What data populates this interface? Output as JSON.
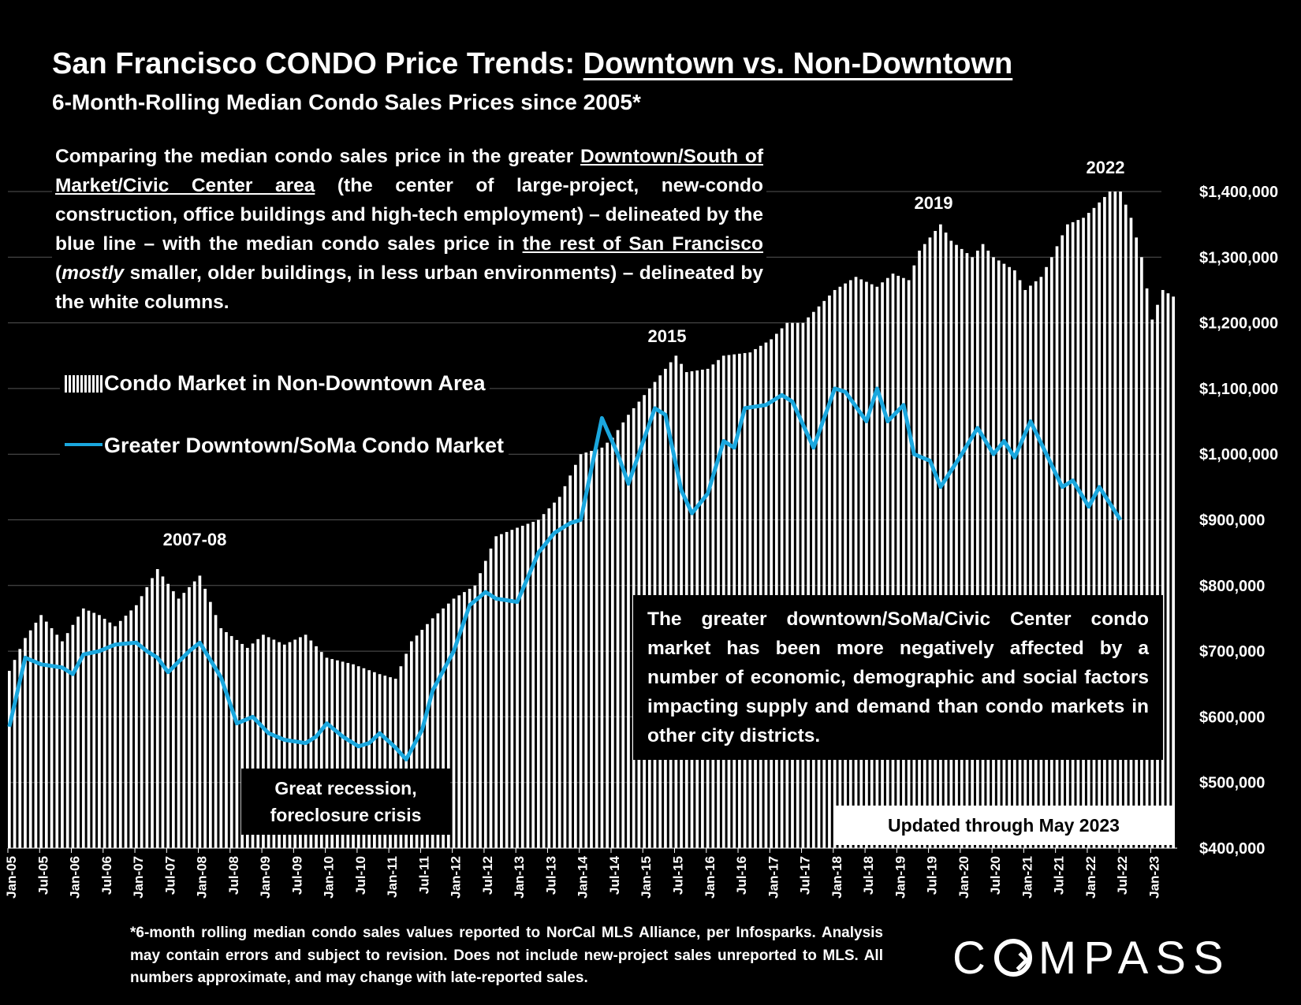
{
  "title": {
    "prefix": "San Francisco CONDO Price Trends: ",
    "underlined": "Downtown vs. Non-Downtown"
  },
  "subtitle": "6-Month-Rolling Median Condo Sales Prices since 2005*",
  "description": {
    "p1": "Comparing the median condo sales price in the greater ",
    "u1": "Downtown/South of Market/Civic Center area",
    "p2": " (the center of large-project, new-condo construction, office buildings and high-tech employment) – delineated by the blue line – with the median condo sales price in ",
    "u2": "the rest of San Francisco",
    "p3": " (",
    "i1": "mostly",
    "p4": " smaller, older buildings, in less urban environments) – delineated by the white columns."
  },
  "legend": {
    "bars": "Condo Market in Non-Downtown Area",
    "line": "Greater Downtown/SoMa Condo Market"
  },
  "annotations": {
    "y2007": "2007-08",
    "y2015": "2015",
    "y2019": "2019",
    "y2022": "2022",
    "box": "The greater downtown/SoMa/Civic Center condo market has been more negatively affected by a number of economic, demographic and social factors impacting supply and demand than condo markets in other city districts.",
    "recession_l1": "Great recession,",
    "recession_l2": "foreclosure crisis",
    "updated": "Updated through May 2023"
  },
  "footnote": "*6-month rolling median condo sales values reported to NorCal MLS Alliance, per Infosparks. Analysis may contain errors and subject to revision. Does not include new-project sales unreported to MLS. All numbers approximate, and may change with late-reported sales.",
  "logo": {
    "c": "C",
    "rest": "MPASS"
  },
  "colors": {
    "line": "#1aa7de",
    "bars": "#ffffff",
    "background": "#000000"
  },
  "chart_data": {
    "type": "bar",
    "ylim": [
      400000,
      1400000
    ],
    "y_ticks": [
      "$400,000",
      "$500,000",
      "$600,000",
      "$700,000",
      "$800,000",
      "$900,000",
      "$1,000,000",
      "$1,100,000",
      "$1,200,000",
      "$1,300,000",
      "$1,400,000"
    ],
    "y_tick_values": [
      400000,
      500000,
      600000,
      700000,
      800000,
      900000,
      1000000,
      1100000,
      1200000,
      1300000,
      1400000
    ],
    "x_ticks": [
      "Jan-05",
      "Jul-05",
      "Jan-06",
      "Jul-06",
      "Jan-07",
      "Jul-07",
      "Jan-08",
      "Jul-08",
      "Jan-09",
      "Jul-09",
      "Jan-10",
      "Jul-10",
      "Jan-11",
      "Jul-11",
      "Jan-12",
      "Jul-12",
      "Jan-13",
      "Jul-13",
      "Jan-14",
      "Jul-14",
      "Jan-15",
      "Jul-15",
      "Jan-16",
      "Jul-16",
      "Jan-17",
      "Jul-17",
      "Jan-18",
      "Jul-18",
      "Jan-19",
      "Jul-19",
      "Jan-20",
      "Jul-20",
      "Jan-21",
      "Jul-21",
      "Jan-22",
      "Jul-22",
      "Jan-23"
    ],
    "start_month": "Jan-05",
    "months": 221,
    "series": [
      {
        "name": "Condo Market in Non-Downtown Area",
        "kind": "bars",
        "anchors": [
          [
            0,
            670000
          ],
          [
            3,
            720000
          ],
          [
            6,
            755000
          ],
          [
            10,
            715000
          ],
          [
            14,
            765000
          ],
          [
            17,
            755000
          ],
          [
            20,
            738000
          ],
          [
            24,
            770000
          ],
          [
            28,
            825000
          ],
          [
            32,
            780000
          ],
          [
            36,
            815000
          ],
          [
            40,
            735000
          ],
          [
            45,
            705000
          ],
          [
            48,
            725000
          ],
          [
            52,
            710000
          ],
          [
            56,
            725000
          ],
          [
            60,
            690000
          ],
          [
            65,
            680000
          ],
          [
            70,
            665000
          ],
          [
            73,
            658000
          ],
          [
            76,
            715000
          ],
          [
            80,
            750000
          ],
          [
            84,
            780000
          ],
          [
            88,
            800000
          ],
          [
            92,
            875000
          ],
          [
            96,
            888000
          ],
          [
            100,
            900000
          ],
          [
            104,
            935000
          ],
          [
            108,
            1000000
          ],
          [
            112,
            1010000
          ],
          [
            114,
            1025000
          ],
          [
            117,
            1060000
          ],
          [
            121,
            1100000
          ],
          [
            126,
            1150000
          ],
          [
            128,
            1125000
          ],
          [
            132,
            1130000
          ],
          [
            135,
            1150000
          ],
          [
            140,
            1155000
          ],
          [
            144,
            1175000
          ],
          [
            147,
            1200000
          ],
          [
            150,
            1200000
          ],
          [
            153,
            1225000
          ],
          [
            156,
            1250000
          ],
          [
            160,
            1270000
          ],
          [
            164,
            1255000
          ],
          [
            167,
            1275000
          ],
          [
            170,
            1265000
          ],
          [
            172,
            1310000
          ],
          [
            174,
            1330000
          ],
          [
            176,
            1350000
          ],
          [
            178,
            1325000
          ],
          [
            182,
            1300000
          ],
          [
            184,
            1320000
          ],
          [
            186,
            1300000
          ],
          [
            190,
            1280000
          ],
          [
            192,
            1250000
          ],
          [
            195,
            1270000
          ],
          [
            197,
            1300000
          ],
          [
            200,
            1350000
          ],
          [
            203,
            1360000
          ],
          [
            205,
            1375000
          ],
          [
            208,
            1400000
          ],
          [
            210,
            1400000
          ],
          [
            212,
            1360000
          ],
          [
            214,
            1300000
          ],
          [
            216,
            1205000
          ],
          [
            218,
            1250000
          ],
          [
            220,
            1240000
          ]
        ]
      },
      {
        "name": "Greater Downtown/SoMa Condo Market",
        "kind": "line",
        "anchors": [
          [
            0,
            585000
          ],
          [
            3,
            690000
          ],
          [
            6,
            680000
          ],
          [
            10,
            675000
          ],
          [
            12,
            665000
          ],
          [
            14,
            695000
          ],
          [
            17,
            700000
          ],
          [
            20,
            710000
          ],
          [
            24,
            713000
          ],
          [
            26,
            700000
          ],
          [
            28,
            690000
          ],
          [
            30,
            668000
          ],
          [
            34,
            700000
          ],
          [
            36,
            713000
          ],
          [
            40,
            660000
          ],
          [
            43,
            590000
          ],
          [
            46,
            600000
          ],
          [
            49,
            575000
          ],
          [
            52,
            565000
          ],
          [
            56,
            560000
          ],
          [
            58,
            570000
          ],
          [
            60,
            590000
          ],
          [
            63,
            570000
          ],
          [
            66,
            555000
          ],
          [
            68,
            560000
          ],
          [
            70,
            575000
          ],
          [
            73,
            553000
          ],
          [
            75,
            535000
          ],
          [
            78,
            580000
          ],
          [
            80,
            640000
          ],
          [
            84,
            700000
          ],
          [
            87,
            770000
          ],
          [
            90,
            790000
          ],
          [
            92,
            780000
          ],
          [
            96,
            775000
          ],
          [
            100,
            850000
          ],
          [
            103,
            880000
          ],
          [
            106,
            895000
          ],
          [
            108,
            900000
          ],
          [
            112,
            1055000
          ],
          [
            115,
            1000000
          ],
          [
            117,
            955000
          ],
          [
            122,
            1070000
          ],
          [
            124,
            1060000
          ],
          [
            127,
            945000
          ],
          [
            129,
            910000
          ],
          [
            132,
            940000
          ],
          [
            135,
            1020000
          ],
          [
            137,
            1010000
          ],
          [
            139,
            1070000
          ],
          [
            143,
            1075000
          ],
          [
            146,
            1090000
          ],
          [
            148,
            1080000
          ],
          [
            152,
            1010000
          ],
          [
            156,
            1100000
          ],
          [
            158,
            1095000
          ],
          [
            162,
            1050000
          ],
          [
            164,
            1100000
          ],
          [
            166,
            1050000
          ],
          [
            169,
            1075000
          ],
          [
            171,
            1000000
          ],
          [
            174,
            990000
          ],
          [
            176,
            950000
          ],
          [
            180,
            1000000
          ],
          [
            183,
            1040000
          ],
          [
            186,
            1000000
          ],
          [
            188,
            1020000
          ],
          [
            190,
            995000
          ],
          [
            193,
            1050000
          ],
          [
            196,
            1000000
          ],
          [
            199,
            950000
          ],
          [
            201,
            960000
          ],
          [
            204,
            920000
          ],
          [
            206,
            950000
          ],
          [
            208,
            925000
          ],
          [
            210,
            900000
          ]
        ]
      }
    ]
  }
}
